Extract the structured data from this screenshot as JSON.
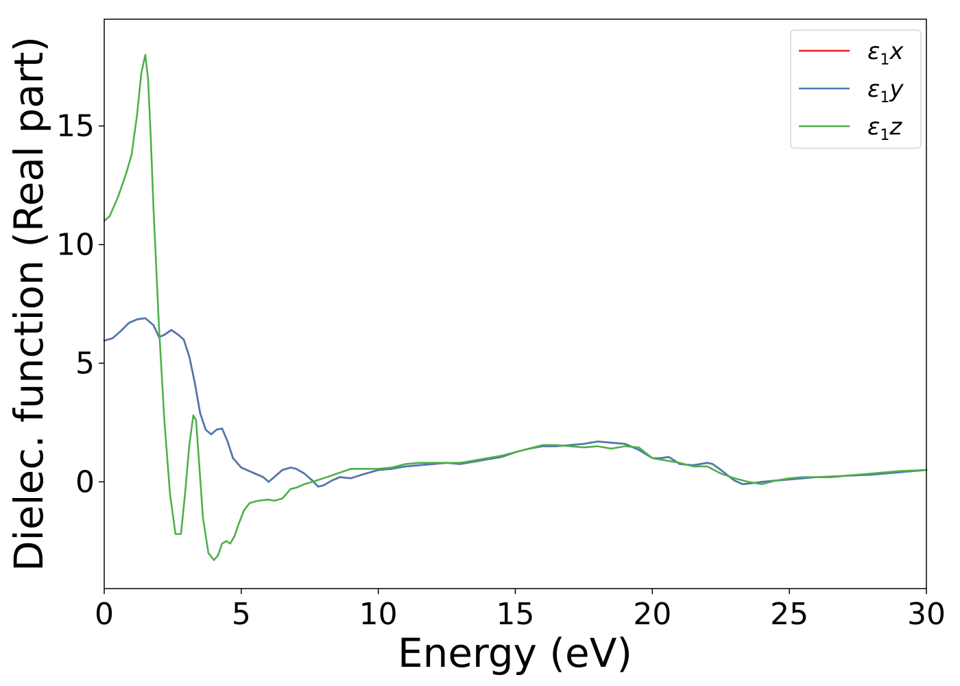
{
  "chart_data": {
    "type": "line",
    "xlabel": "Energy (eV)",
    "ylabel": "Dielec. function (Real part)",
    "xlim": [
      0,
      30
    ],
    "ylim": [
      -4.5,
      19.5
    ],
    "xticks": [
      0,
      5,
      10,
      15,
      20,
      25,
      30
    ],
    "yticks": [
      0,
      5,
      10,
      15
    ],
    "grid": false,
    "legend_position": "top-right",
    "series": [
      {
        "name": "ε1x",
        "legend_base": "ε",
        "legend_sub": "1",
        "legend_var": "x",
        "color": "#e41a1c",
        "x": [
          0,
          0.3,
          0.6,
          0.9,
          1.2,
          1.5,
          1.8,
          2.0,
          2.2,
          2.45,
          2.7,
          2.9,
          3.1,
          3.3,
          3.5,
          3.7,
          3.9,
          4.1,
          4.3,
          4.5,
          4.7,
          5.0,
          5.3,
          5.6,
          5.8,
          6.0,
          6.2,
          6.5,
          6.8,
          7.0,
          7.3,
          7.6,
          7.8,
          8.0,
          8.3,
          8.6,
          9.0,
          9.4,
          10.0,
          10.5,
          11.0,
          11.5,
          12.0,
          12.5,
          13.0,
          13.5,
          14.0,
          14.5,
          15.0,
          15.5,
          16.0,
          16.5,
          17.0,
          17.5,
          18.0,
          18.5,
          19.0,
          19.5,
          20.0,
          20.3,
          20.6,
          21.0,
          21.5,
          22.0,
          22.2,
          22.5,
          23.0,
          23.3,
          23.7,
          24.0,
          24.5,
          25.0,
          25.5,
          26.0,
          26.5,
          27.0,
          28.0,
          29.0,
          30.0
        ],
        "y": [
          5.95,
          6.05,
          6.35,
          6.7,
          6.85,
          6.9,
          6.6,
          6.1,
          6.2,
          6.4,
          6.2,
          6.0,
          5.3,
          4.2,
          2.9,
          2.2,
          2.0,
          2.2,
          2.25,
          1.7,
          1.0,
          0.6,
          0.45,
          0.3,
          0.2,
          0.0,
          0.2,
          0.5,
          0.6,
          0.55,
          0.35,
          0.05,
          -0.2,
          -0.15,
          0.05,
          0.2,
          0.15,
          0.3,
          0.5,
          0.55,
          0.65,
          0.7,
          0.75,
          0.8,
          0.75,
          0.85,
          0.95,
          1.05,
          1.25,
          1.4,
          1.5,
          1.5,
          1.55,
          1.6,
          1.7,
          1.65,
          1.6,
          1.35,
          1.0,
          1.0,
          1.05,
          0.75,
          0.7,
          0.8,
          0.75,
          0.5,
          0.05,
          -0.1,
          -0.05,
          0.0,
          0.05,
          0.1,
          0.15,
          0.2,
          0.2,
          0.25,
          0.3,
          0.4,
          0.5
        ]
      },
      {
        "name": "ε1y",
        "legend_base": "ε",
        "legend_sub": "1",
        "legend_var": "y",
        "color": "#4a79b4",
        "x": [
          0,
          0.3,
          0.6,
          0.9,
          1.2,
          1.5,
          1.8,
          2.0,
          2.2,
          2.45,
          2.7,
          2.9,
          3.1,
          3.3,
          3.5,
          3.7,
          3.9,
          4.1,
          4.3,
          4.5,
          4.7,
          5.0,
          5.3,
          5.6,
          5.8,
          6.0,
          6.2,
          6.5,
          6.8,
          7.0,
          7.3,
          7.6,
          7.8,
          8.0,
          8.3,
          8.6,
          9.0,
          9.4,
          10.0,
          10.5,
          11.0,
          11.5,
          12.0,
          12.5,
          13.0,
          13.5,
          14.0,
          14.5,
          15.0,
          15.5,
          16.0,
          16.5,
          17.0,
          17.5,
          18.0,
          18.5,
          19.0,
          19.5,
          20.0,
          20.3,
          20.6,
          21.0,
          21.5,
          22.0,
          22.2,
          22.5,
          23.0,
          23.3,
          23.7,
          24.0,
          24.5,
          25.0,
          25.5,
          26.0,
          26.5,
          27.0,
          28.0,
          29.0,
          30.0
        ],
        "y": [
          5.95,
          6.05,
          6.35,
          6.7,
          6.85,
          6.9,
          6.6,
          6.1,
          6.2,
          6.4,
          6.2,
          6.0,
          5.3,
          4.2,
          2.9,
          2.2,
          2.0,
          2.2,
          2.25,
          1.7,
          1.0,
          0.6,
          0.45,
          0.3,
          0.2,
          0.0,
          0.2,
          0.5,
          0.6,
          0.55,
          0.35,
          0.05,
          -0.2,
          -0.15,
          0.05,
          0.2,
          0.15,
          0.3,
          0.5,
          0.55,
          0.65,
          0.7,
          0.75,
          0.8,
          0.75,
          0.85,
          0.95,
          1.05,
          1.25,
          1.4,
          1.5,
          1.5,
          1.55,
          1.6,
          1.7,
          1.65,
          1.6,
          1.35,
          1.0,
          1.0,
          1.05,
          0.75,
          0.7,
          0.8,
          0.75,
          0.5,
          0.05,
          -0.1,
          -0.05,
          0.0,
          0.05,
          0.1,
          0.15,
          0.2,
          0.2,
          0.25,
          0.3,
          0.4,
          0.5
        ]
      },
      {
        "name": "ε1z",
        "legend_base": "ε",
        "legend_sub": "1",
        "legend_var": "z",
        "color": "#4daf4a",
        "x": [
          0,
          0.2,
          0.5,
          0.8,
          1.0,
          1.2,
          1.35,
          1.5,
          1.6,
          1.7,
          1.8,
          2.0,
          2.2,
          2.4,
          2.6,
          2.8,
          2.95,
          3.1,
          3.25,
          3.35,
          3.45,
          3.6,
          3.8,
          4.0,
          4.15,
          4.3,
          4.45,
          4.6,
          4.75,
          4.9,
          5.1,
          5.3,
          5.6,
          6.0,
          6.2,
          6.5,
          6.8,
          7.0,
          7.3,
          7.6,
          8.0,
          8.5,
          9.0,
          9.5,
          10.0,
          10.5,
          11.0,
          11.5,
          12.0,
          12.5,
          13.0,
          13.5,
          14.0,
          14.5,
          15.0,
          15.5,
          16.0,
          16.5,
          17.0,
          17.5,
          18.0,
          18.5,
          19.0,
          19.5,
          20.0,
          20.5,
          21.0,
          21.5,
          22.0,
          22.5,
          23.0,
          23.5,
          24.0,
          24.5,
          25.0,
          25.5,
          26.0,
          27.0,
          28.0,
          29.0,
          30.0
        ],
        "y": [
          11.0,
          11.2,
          12.0,
          13.0,
          13.8,
          15.5,
          17.2,
          18.0,
          17.0,
          14.5,
          11.5,
          6.5,
          2.5,
          -0.5,
          -2.2,
          -2.2,
          -0.5,
          1.5,
          2.8,
          2.6,
          1.0,
          -1.5,
          -3.0,
          -3.3,
          -3.1,
          -2.6,
          -2.5,
          -2.6,
          -2.3,
          -1.8,
          -1.2,
          -0.9,
          -0.8,
          -0.75,
          -0.8,
          -0.7,
          -0.3,
          -0.25,
          -0.1,
          0.0,
          0.15,
          0.35,
          0.55,
          0.55,
          0.55,
          0.6,
          0.75,
          0.8,
          0.8,
          0.8,
          0.8,
          0.9,
          1.0,
          1.1,
          1.25,
          1.4,
          1.55,
          1.55,
          1.5,
          1.45,
          1.5,
          1.4,
          1.5,
          1.45,
          1.0,
          0.9,
          0.8,
          0.65,
          0.65,
          0.35,
          0.15,
          0.0,
          -0.1,
          0.05,
          0.15,
          0.2,
          0.2,
          0.25,
          0.35,
          0.45,
          0.5
        ]
      }
    ]
  }
}
